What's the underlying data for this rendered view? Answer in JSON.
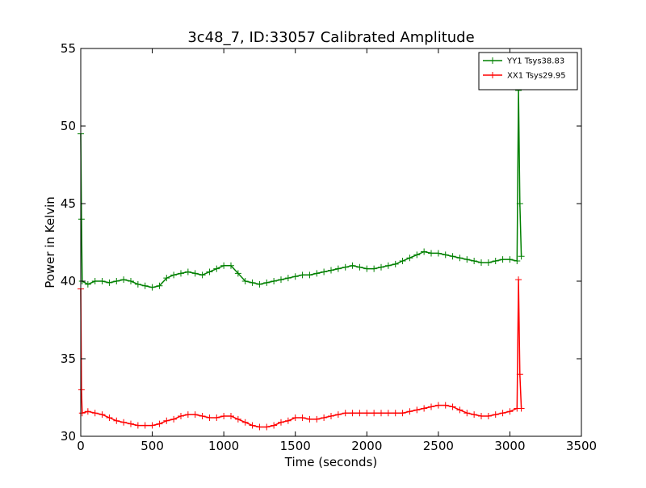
{
  "chart_data": {
    "type": "line",
    "title": "3c48_7, ID:33057 Calibrated Amplitude",
    "xlabel": "Time (seconds)",
    "ylabel": "Power in Kelvin",
    "xlim": [
      0,
      3500
    ],
    "ylim": [
      30,
      55
    ],
    "xticks": [
      0,
      500,
      1000,
      1500,
      2000,
      2500,
      3000,
      3500
    ],
    "yticks": [
      30,
      35,
      40,
      45,
      50,
      55
    ],
    "grid": false,
    "legend_position": "top-right",
    "marker": "+",
    "series": [
      {
        "name": "YY1 Tsys38.83",
        "color": "#008000",
        "x": [
          0,
          5,
          10,
          50,
          100,
          150,
          200,
          250,
          300,
          350,
          400,
          450,
          500,
          550,
          600,
          650,
          700,
          750,
          800,
          850,
          900,
          950,
          1000,
          1050,
          1100,
          1150,
          1200,
          1250,
          1300,
          1350,
          1400,
          1450,
          1500,
          1550,
          1600,
          1650,
          1700,
          1750,
          1800,
          1850,
          1900,
          1950,
          2000,
          2050,
          2100,
          2150,
          2200,
          2250,
          2300,
          2350,
          2400,
          2450,
          2500,
          2550,
          2600,
          2650,
          2700,
          2750,
          2800,
          2850,
          2900,
          2950,
          3000,
          3050,
          3060,
          3070,
          3080
        ],
        "values": [
          49.5,
          44.0,
          40.0,
          39.8,
          40.0,
          40.0,
          39.9,
          40.0,
          40.1,
          40.0,
          39.8,
          39.7,
          39.6,
          39.7,
          40.2,
          40.4,
          40.5,
          40.6,
          40.5,
          40.4,
          40.6,
          40.8,
          41.0,
          41.0,
          40.5,
          40.0,
          39.9,
          39.8,
          39.9,
          40.0,
          40.1,
          40.2,
          40.3,
          40.4,
          40.4,
          40.5,
          40.6,
          40.7,
          40.8,
          40.9,
          41.0,
          40.9,
          40.8,
          40.8,
          40.9,
          41.0,
          41.1,
          41.3,
          41.5,
          41.7,
          41.9,
          41.8,
          41.8,
          41.7,
          41.6,
          41.5,
          41.4,
          41.3,
          41.2,
          41.2,
          41.3,
          41.4,
          41.4,
          41.3,
          52.3,
          45.0,
          41.6
        ]
      },
      {
        "name": "XX1 Tsys29.95",
        "color": "#ff0000",
        "x": [
          0,
          5,
          10,
          50,
          100,
          150,
          200,
          250,
          300,
          350,
          400,
          450,
          500,
          550,
          600,
          650,
          700,
          750,
          800,
          850,
          900,
          950,
          1000,
          1050,
          1100,
          1150,
          1200,
          1250,
          1300,
          1350,
          1400,
          1450,
          1500,
          1550,
          1600,
          1650,
          1700,
          1750,
          1800,
          1850,
          1900,
          1950,
          2000,
          2050,
          2100,
          2150,
          2200,
          2250,
          2300,
          2350,
          2400,
          2450,
          2500,
          2550,
          2600,
          2650,
          2700,
          2750,
          2800,
          2850,
          2900,
          2950,
          3000,
          3050,
          3060,
          3070,
          3080
        ],
        "values": [
          39.5,
          33.0,
          31.5,
          31.6,
          31.5,
          31.4,
          31.2,
          31.0,
          30.9,
          30.8,
          30.7,
          30.7,
          30.7,
          30.8,
          31.0,
          31.1,
          31.3,
          31.4,
          31.4,
          31.3,
          31.2,
          31.2,
          31.3,
          31.3,
          31.1,
          30.9,
          30.7,
          30.6,
          30.6,
          30.7,
          30.9,
          31.0,
          31.2,
          31.2,
          31.1,
          31.1,
          31.2,
          31.3,
          31.4,
          31.5,
          31.5,
          31.5,
          31.5,
          31.5,
          31.5,
          31.5,
          31.5,
          31.5,
          31.6,
          31.7,
          31.8,
          31.9,
          32.0,
          32.0,
          31.9,
          31.7,
          31.5,
          31.4,
          31.3,
          31.3,
          31.4,
          31.5,
          31.6,
          31.8,
          40.1,
          34.0,
          31.8
        ]
      }
    ]
  }
}
